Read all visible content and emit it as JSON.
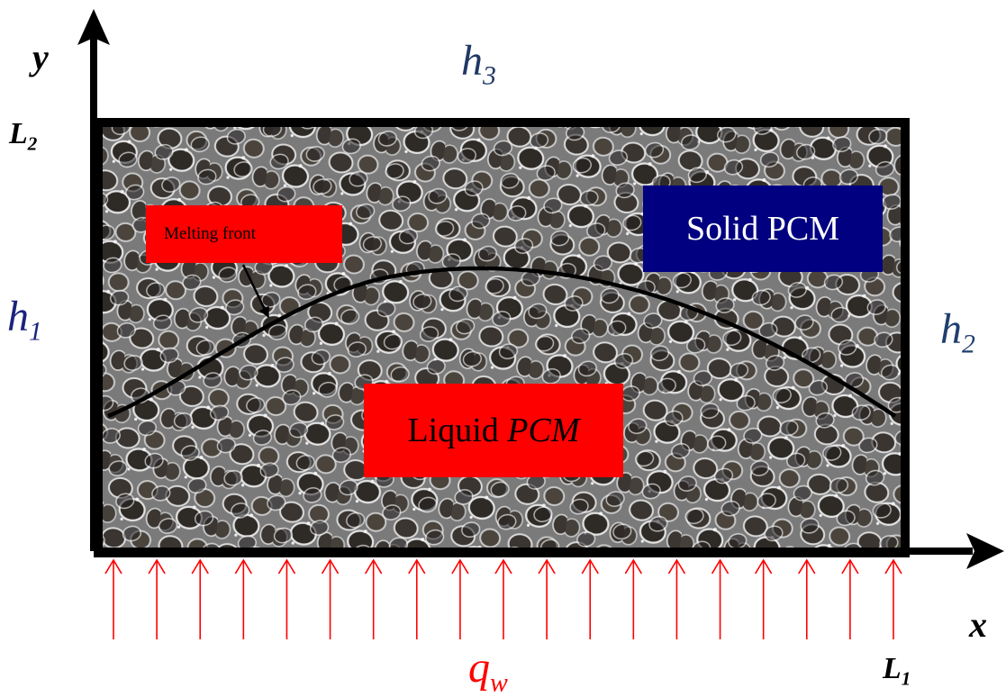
{
  "axes": {
    "y_symbol": "y",
    "x_symbol": "x",
    "L2": {
      "base": "L",
      "sub": "2"
    },
    "L1": {
      "base": "L",
      "sub": "1"
    }
  },
  "boundaries": {
    "h3": {
      "base": "h",
      "sub": "3"
    },
    "h1": {
      "base": "h",
      "sub": "1"
    },
    "h2": {
      "base": "h",
      "sub": "2"
    },
    "qw": {
      "base": "q",
      "sub": "w"
    }
  },
  "labels": {
    "melting_front": "Melting front",
    "solid_pcm": "Solid PCM",
    "liquid_prefix": "Liquid ",
    "liquid_pcm_italic": "PCM"
  },
  "colors": {
    "axis": "#000000",
    "boundary_h3": "#1f3864",
    "boundary_h1": "#1a237e",
    "boundary_h2": "#1f3f6e",
    "heat_flux": "#ff0000",
    "label_red_bg": "#ff0000",
    "solid_bg": "#000080",
    "label_text_light": "#ffffff",
    "foam_base": "#6d6d6d"
  },
  "icons": {
    "heat_flux_arrows": "arrow-up-icon",
    "axis_arrows": "arrowhead-icon"
  }
}
